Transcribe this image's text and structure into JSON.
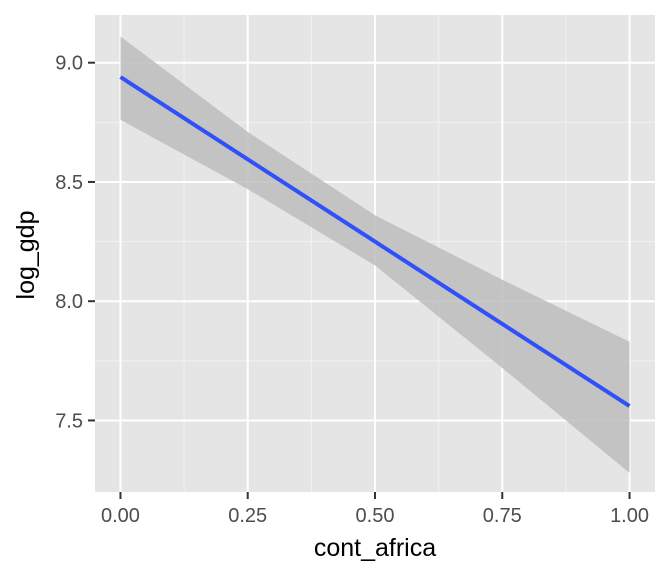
{
  "chart_data": {
    "type": "line",
    "title": "",
    "xlabel": "cont_africa",
    "ylabel": "log_gdp",
    "xlim": [
      -0.05,
      1.05
    ],
    "ylim": [
      7.2,
      9.2
    ],
    "x_ticks": [
      0.0,
      0.25,
      0.5,
      0.75,
      1.0
    ],
    "x_tick_labels": [
      "0.00",
      "0.25",
      "0.50",
      "0.75",
      "1.00"
    ],
    "y_ticks": [
      7.5,
      8.0,
      8.5,
      9.0
    ],
    "y_tick_labels": [
      "7.5",
      "8.0",
      "8.5",
      "9.0"
    ],
    "grid": true,
    "legend": "none",
    "series": [
      {
        "x": [
          0.0,
          0.25,
          0.5,
          0.75,
          1.0
        ],
        "y": [
          8.94,
          8.595,
          8.25,
          7.905,
          7.56
        ],
        "ci_lower": [
          8.76,
          8.47,
          8.15,
          7.72,
          7.28
        ],
        "ci_upper": [
          9.11,
          8.71,
          8.36,
          8.09,
          7.83
        ]
      }
    ],
    "colors": {
      "line": "#3050f8",
      "ribbon": "#bdbdbd",
      "panel": "#e5e5e5",
      "grid_major": "#ffffff",
      "grid_minor": "#f2f2f2"
    }
  }
}
